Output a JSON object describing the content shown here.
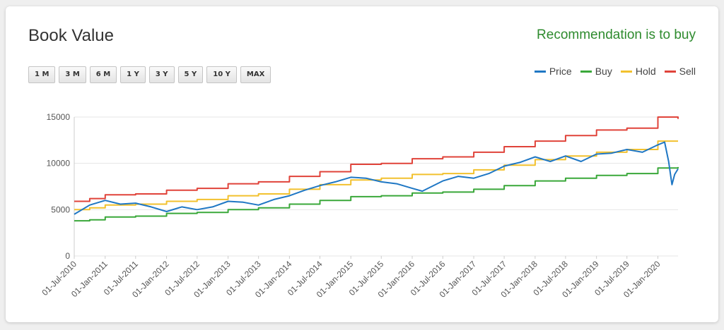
{
  "page": {
    "title": "Book Value",
    "recommendation": "Recommendation is to buy",
    "recommendation_color": "#2e8b2e",
    "range_buttons": [
      "1 M",
      "3 M",
      "6 M",
      "1 Y",
      "3 Y",
      "5 Y",
      "10 Y",
      "MAX"
    ]
  },
  "chart_data": {
    "type": "line",
    "title": "",
    "xlabel": "",
    "ylabel": "",
    "ylim": [
      0,
      15000
    ],
    "yticks": [
      0,
      5000,
      10000,
      15000
    ],
    "xlim": [
      "2010-07-01",
      "2020-04-30"
    ],
    "xtick_labels": [
      "01-Jul-2010",
      "01-Jan-2011",
      "01-Jul-2011",
      "01-Jan-2012",
      "01-Jul-2012",
      "01-Jan-2013",
      "01-Jul-2013",
      "01-Jan-2014",
      "01-Jul-2014",
      "01-Jan-2015",
      "01-Jul-2015",
      "01-Jan-2016",
      "01-Jul-2016",
      "01-Jan-2017",
      "01-Jul-2017",
      "01-Jan-2018",
      "01-Jul-2018",
      "01-Jan-2019",
      "01-Jul-2019",
      "01-Jan-2020"
    ],
    "grid": true,
    "legend": "top-right",
    "series": [
      {
        "name": "Price",
        "color": "#1f77c4",
        "points": [
          [
            "2010-07-01",
            4500
          ],
          [
            "2010-10-01",
            5500
          ],
          [
            "2011-01-01",
            6000
          ],
          [
            "2011-04-01",
            5600
          ],
          [
            "2011-07-01",
            5700
          ],
          [
            "2011-10-01",
            5300
          ],
          [
            "2012-01-01",
            4800
          ],
          [
            "2012-04-01",
            5300
          ],
          [
            "2012-07-01",
            5000
          ],
          [
            "2012-10-01",
            5300
          ],
          [
            "2013-01-01",
            5900
          ],
          [
            "2013-04-01",
            5800
          ],
          [
            "2013-07-01",
            5500
          ],
          [
            "2013-10-01",
            6100
          ],
          [
            "2014-01-01",
            6500
          ],
          [
            "2014-04-01",
            7100
          ],
          [
            "2014-07-01",
            7600
          ],
          [
            "2014-10-01",
            8000
          ],
          [
            "2015-01-01",
            8500
          ],
          [
            "2015-04-01",
            8400
          ],
          [
            "2015-07-01",
            8000
          ],
          [
            "2015-10-01",
            7800
          ],
          [
            "2016-01-01",
            7300
          ],
          [
            "2016-03-01",
            7000
          ],
          [
            "2016-07-01",
            8100
          ],
          [
            "2016-10-01",
            8600
          ],
          [
            "2017-01-01",
            8400
          ],
          [
            "2017-04-01",
            8900
          ],
          [
            "2017-07-01",
            9700
          ],
          [
            "2017-10-01",
            10100
          ],
          [
            "2018-01-01",
            10700
          ],
          [
            "2018-04-01",
            10200
          ],
          [
            "2018-07-01",
            10800
          ],
          [
            "2018-10-01",
            10200
          ],
          [
            "2019-01-01",
            11000
          ],
          [
            "2019-04-01",
            11100
          ],
          [
            "2019-07-01",
            11500
          ],
          [
            "2019-10-01",
            11200
          ],
          [
            "2020-01-01",
            12000
          ],
          [
            "2020-02-10",
            12300
          ],
          [
            "2020-03-05",
            10200
          ],
          [
            "2020-03-25",
            7700
          ],
          [
            "2020-04-10",
            8800
          ],
          [
            "2020-04-30",
            9400
          ]
        ]
      },
      {
        "name": "Buy",
        "color": "#3aa83a",
        "points": [
          [
            "2010-07-01",
            3800
          ],
          [
            "2010-10-01",
            3900
          ],
          [
            "2011-01-01",
            4200
          ],
          [
            "2011-07-01",
            4300
          ],
          [
            "2012-01-01",
            4600
          ],
          [
            "2012-07-01",
            4700
          ],
          [
            "2013-01-01",
            5000
          ],
          [
            "2013-07-01",
            5200
          ],
          [
            "2014-01-01",
            5600
          ],
          [
            "2014-07-01",
            6000
          ],
          [
            "2015-01-01",
            6400
          ],
          [
            "2015-07-01",
            6500
          ],
          [
            "2016-01-01",
            6800
          ],
          [
            "2016-07-01",
            6900
          ],
          [
            "2017-01-01",
            7200
          ],
          [
            "2017-07-01",
            7600
          ],
          [
            "2018-01-01",
            8100
          ],
          [
            "2018-07-01",
            8400
          ],
          [
            "2019-01-01",
            8700
          ],
          [
            "2019-07-01",
            8900
          ],
          [
            "2020-01-01",
            9500
          ],
          [
            "2020-04-30",
            9600
          ]
        ]
      },
      {
        "name": "Hold",
        "color": "#f2c12e",
        "points": [
          [
            "2010-07-01",
            5000
          ],
          [
            "2010-10-01",
            5200
          ],
          [
            "2011-01-01",
            5500
          ],
          [
            "2011-07-01",
            5600
          ],
          [
            "2012-01-01",
            5900
          ],
          [
            "2012-07-01",
            6100
          ],
          [
            "2013-01-01",
            6500
          ],
          [
            "2013-07-01",
            6700
          ],
          [
            "2014-01-01",
            7200
          ],
          [
            "2014-07-01",
            7700
          ],
          [
            "2015-01-01",
            8200
          ],
          [
            "2015-07-01",
            8400
          ],
          [
            "2016-01-01",
            8800
          ],
          [
            "2016-07-01",
            8900
          ],
          [
            "2017-01-01",
            9300
          ],
          [
            "2017-07-01",
            9800
          ],
          [
            "2018-01-01",
            10400
          ],
          [
            "2018-07-01",
            10800
          ],
          [
            "2019-01-01",
            11200
          ],
          [
            "2019-07-01",
            11500
          ],
          [
            "2020-01-01",
            12400
          ],
          [
            "2020-04-30",
            12400
          ]
        ]
      },
      {
        "name": "Sell",
        "color": "#e0433a",
        "points": [
          [
            "2010-07-01",
            5900
          ],
          [
            "2010-10-01",
            6200
          ],
          [
            "2011-01-01",
            6600
          ],
          [
            "2011-07-01",
            6700
          ],
          [
            "2012-01-01",
            7100
          ],
          [
            "2012-07-01",
            7300
          ],
          [
            "2013-01-01",
            7800
          ],
          [
            "2013-07-01",
            8000
          ],
          [
            "2014-01-01",
            8600
          ],
          [
            "2014-07-01",
            9100
          ],
          [
            "2015-01-01",
            9900
          ],
          [
            "2015-07-01",
            10000
          ],
          [
            "2016-01-01",
            10500
          ],
          [
            "2016-07-01",
            10700
          ],
          [
            "2017-01-01",
            11200
          ],
          [
            "2017-07-01",
            11800
          ],
          [
            "2018-01-01",
            12400
          ],
          [
            "2018-07-01",
            13000
          ],
          [
            "2019-01-01",
            13600
          ],
          [
            "2019-07-01",
            13800
          ],
          [
            "2020-01-01",
            15000
          ],
          [
            "2020-04-30",
            14800
          ]
        ]
      }
    ]
  }
}
